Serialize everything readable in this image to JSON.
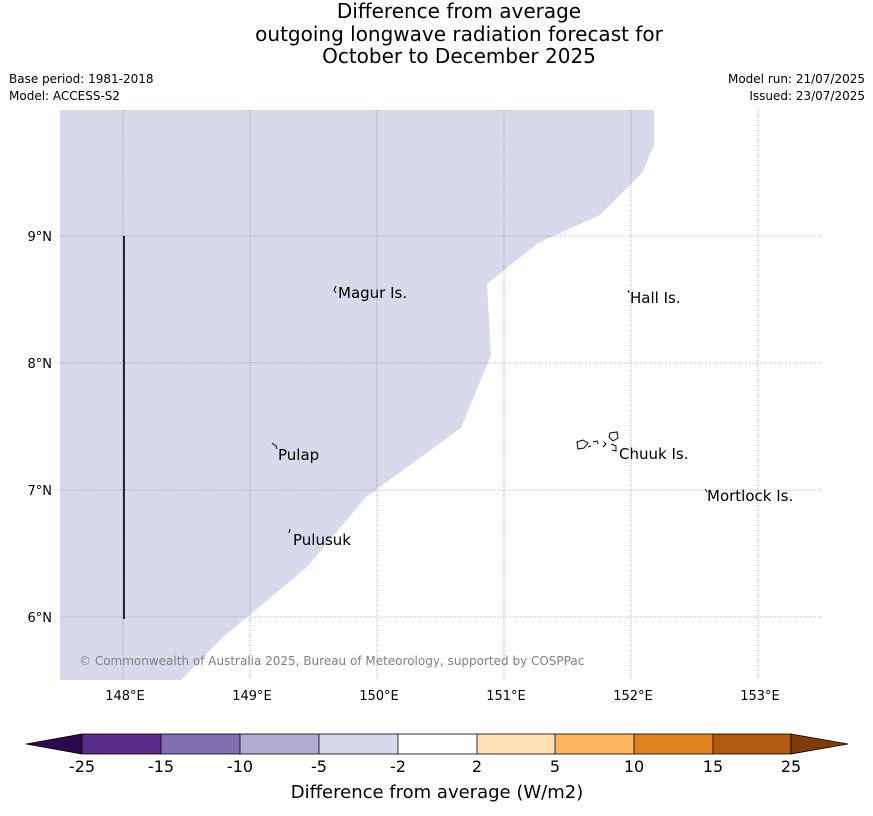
{
  "title_lines": [
    "Difference from average",
    "outgoing longwave radiation forecast for",
    "October to December 2025"
  ],
  "info_left": [
    "Base period: 1981-2018",
    "Model: ACCESS-S2"
  ],
  "info_right": [
    "Model run: 21/07/2025",
    "Issued: 23/07/2025"
  ],
  "map": {
    "lon_ticks": [
      "148°E",
      "149°E",
      "150°E",
      "151°E",
      "152°E",
      "153°E"
    ],
    "lat_ticks": [
      "9°N",
      "8°N",
      "7°N",
      "6°N"
    ],
    "places": [
      "Magur Is.",
      "Hall Is.",
      "Pulap",
      "Chuuk Is.",
      "Mortlock Is.",
      "Pulusuk"
    ],
    "shaded_category": "-5 to -2",
    "shaded_color": "#d8d9ea",
    "copyright": "© Commonwealth of Australia 2025, Bureau of Meteorology, supported by COSPPac"
  },
  "colorbar": {
    "ticks": [
      "-25",
      "-15",
      "-10",
      "-5",
      "-2",
      "2",
      "5",
      "10",
      "15",
      "25"
    ],
    "colors": [
      "#2d0a4e",
      "#572a8c",
      "#8070b0",
      "#b1abd3",
      "#d8d9ea",
      "#ffffff",
      "#fde0b6",
      "#fdb560",
      "#e1821c",
      "#b35a0c",
      "#7f3b08"
    ],
    "label": "Difference from average (W/m2)"
  }
}
